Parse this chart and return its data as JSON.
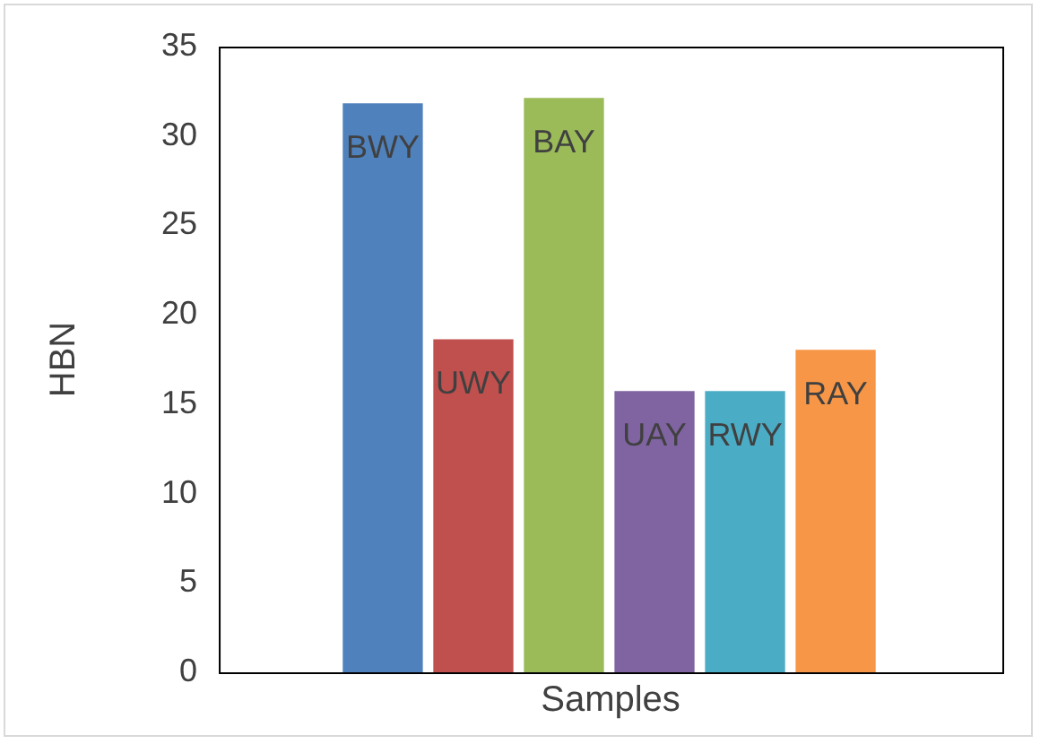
{
  "chart_data": {
    "type": "bar",
    "xlabel": "Samples",
    "ylabel": "HBN",
    "categories": [
      "BWY",
      "UWY",
      "BAY",
      "UAY",
      "RWY",
      "RAY"
    ],
    "values": [
      31.8,
      18.6,
      32.1,
      15.7,
      15.7,
      18.0
    ],
    "colors": [
      "#4f81bd",
      "#c0504d",
      "#9bbb59",
      "#8064a2",
      "#4bacc6",
      "#f79646"
    ],
    "ylim": [
      0,
      35
    ],
    "yticks": [
      0,
      5,
      10,
      15,
      20,
      25,
      30,
      35
    ],
    "grid": false,
    "legend": false
  }
}
